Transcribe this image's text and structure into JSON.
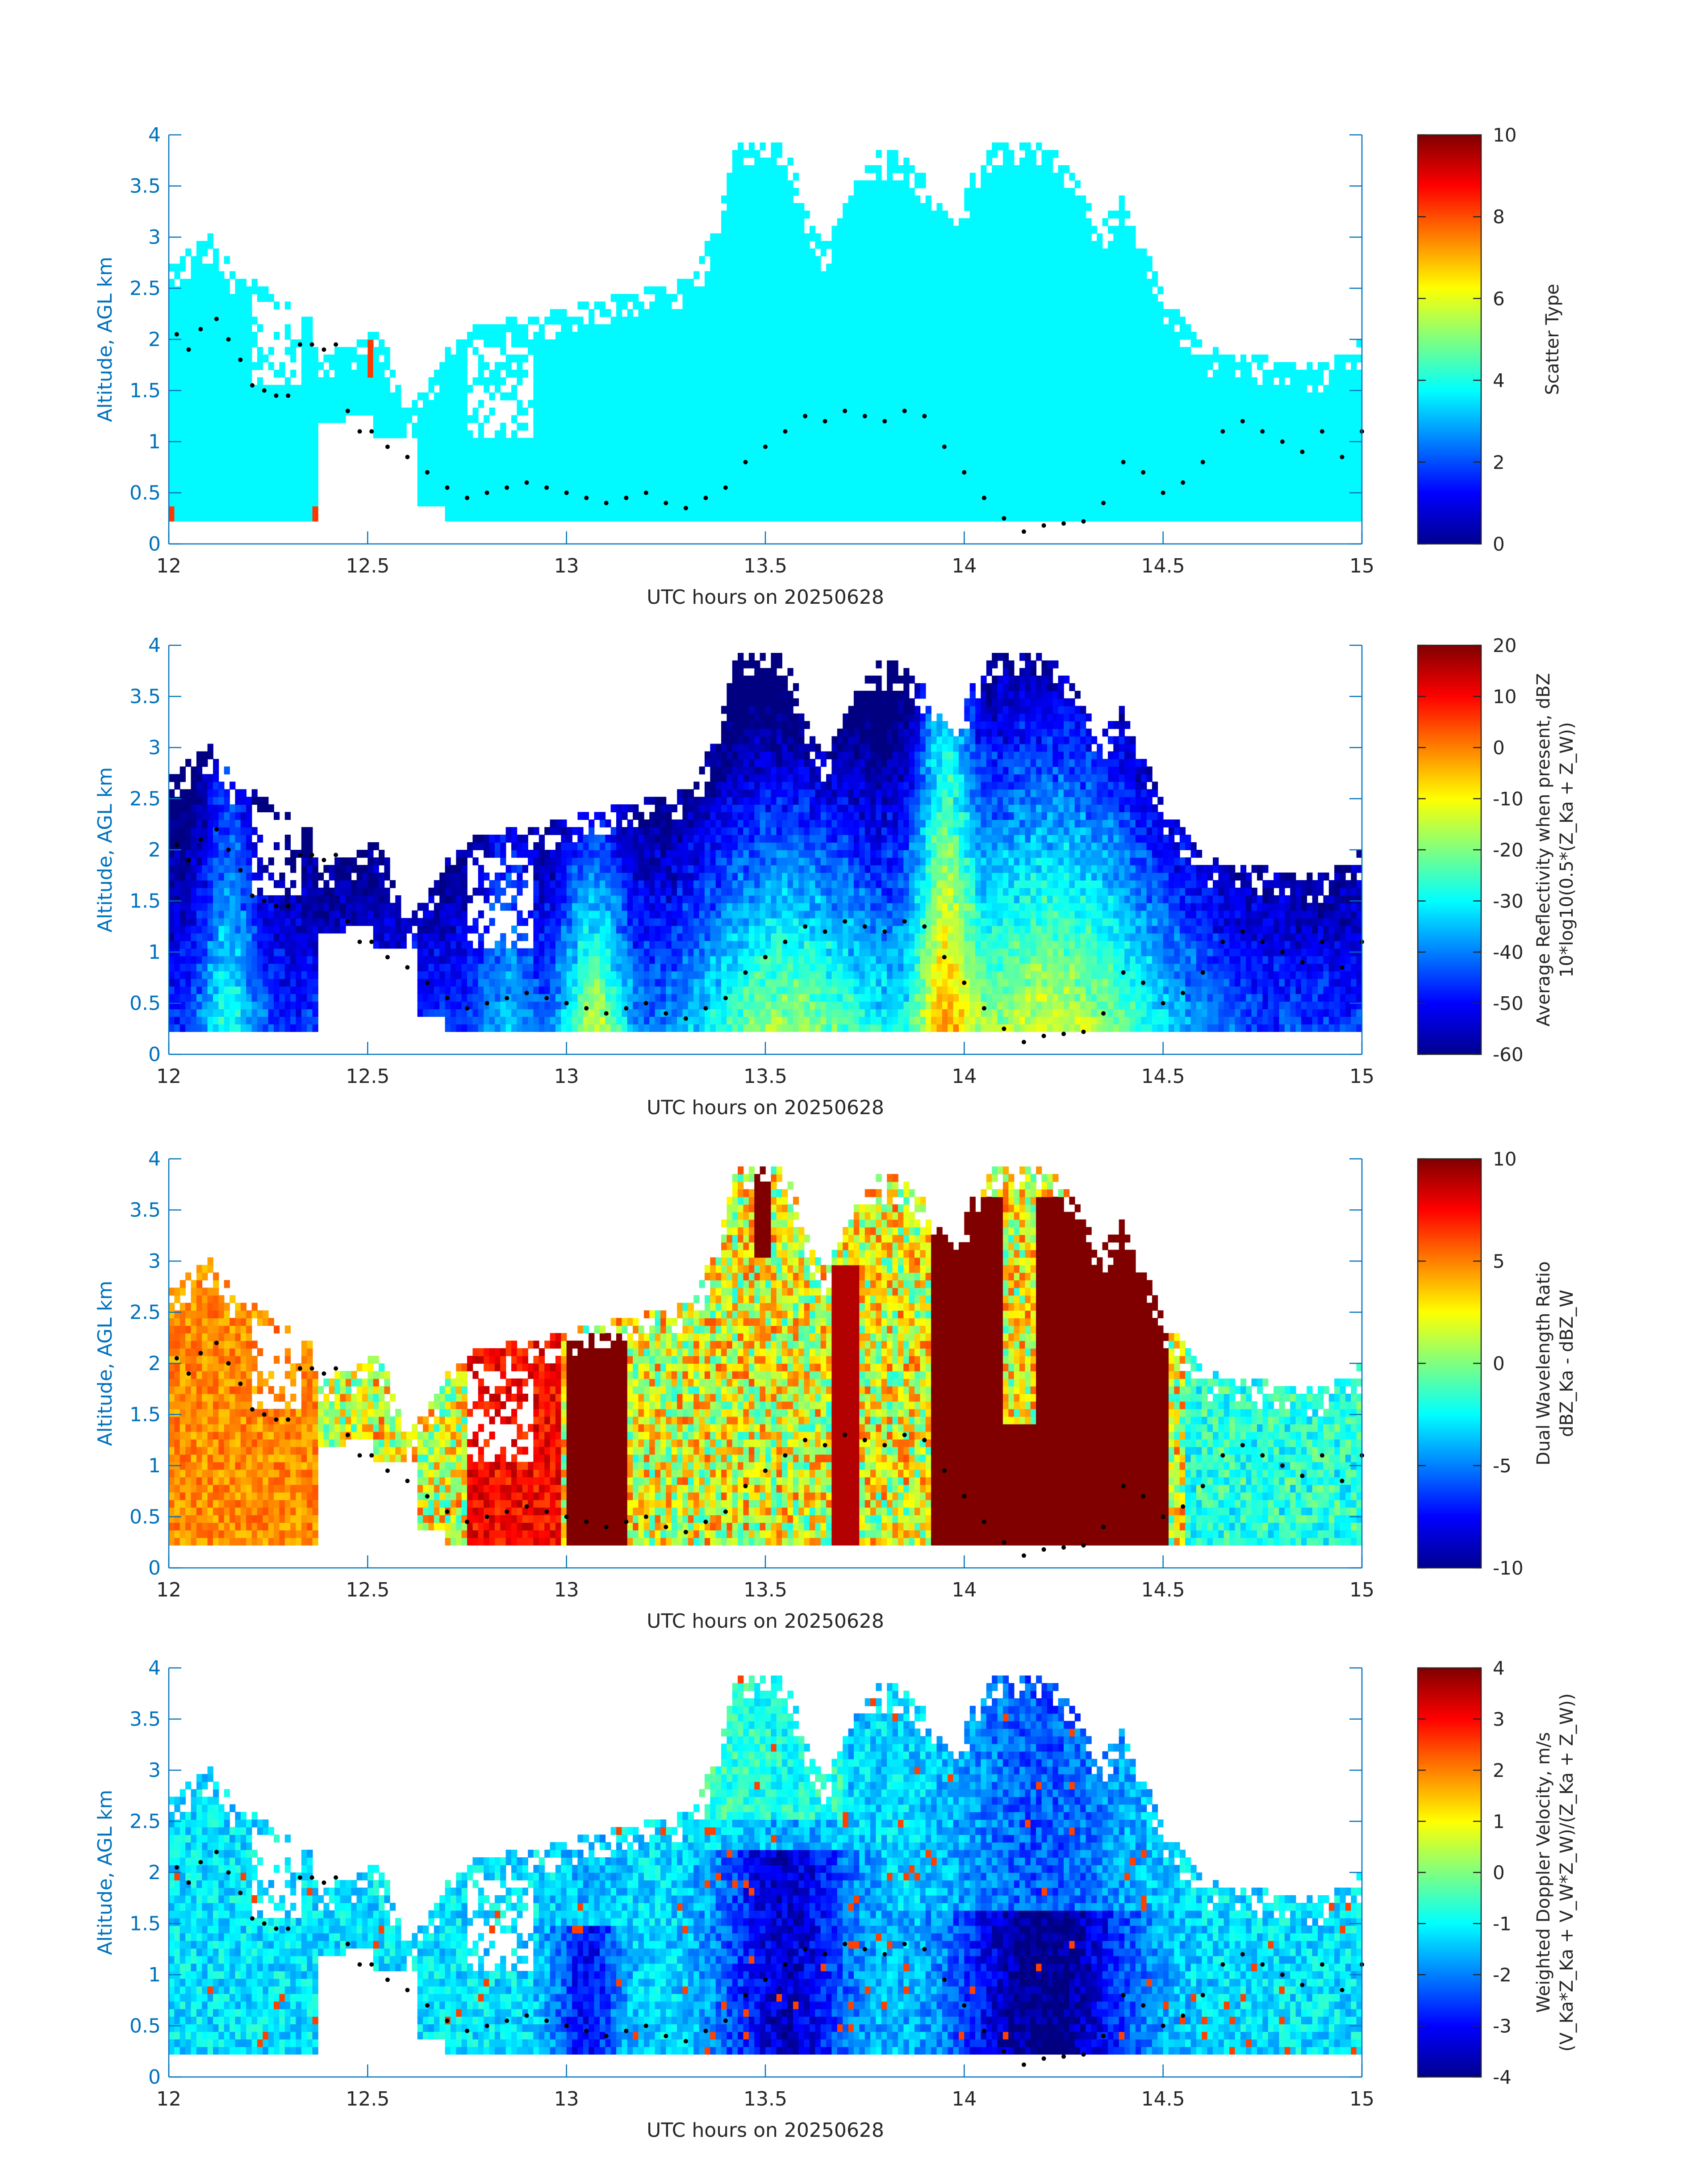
{
  "figure": {
    "colors": {
      "axis": "#0072BD",
      "text": "#262626",
      "background": "#FFFFFF",
      "colormap": "jet"
    }
  },
  "chart_data": [
    {
      "type": "heatmap",
      "title": "",
      "xlabel": "UTC hours on 20250628",
      "ylabel": "Altitude, AGL km",
      "xlim": [
        12,
        15
      ],
      "ylim": [
        0,
        4
      ],
      "xticks": [
        "12",
        "12.5",
        "13",
        "13.5",
        "14",
        "14.5",
        "15"
      ],
      "yticks": [
        "0",
        "0.5",
        "1",
        "1.5",
        "2",
        "2.5",
        "3",
        "3.5",
        "4"
      ],
      "colorbar": {
        "label_lines": [
          "Scatter Type"
        ],
        "clim": [
          0,
          10
        ],
        "ticks": [
          "0",
          "2",
          "4",
          "6",
          "8",
          "10"
        ]
      },
      "field": "scatter_type"
    },
    {
      "type": "heatmap",
      "title": "",
      "xlabel": "UTC hours on 20250628",
      "ylabel": "Altitude, AGL km",
      "xlim": [
        12,
        15
      ],
      "ylim": [
        0,
        4
      ],
      "xticks": [
        "12",
        "12.5",
        "13",
        "13.5",
        "14",
        "14.5",
        "15"
      ],
      "yticks": [
        "0",
        "0.5",
        "1",
        "1.5",
        "2",
        "2.5",
        "3",
        "3.5",
        "4"
      ],
      "colorbar": {
        "label_lines": [
          "Average Reflectivity when present, dBZ",
          "10*log10(0.5*(Z_Ka + Z_W))"
        ],
        "clim": [
          -60,
          20
        ],
        "ticks": [
          "-60",
          "-50",
          "-40",
          "-30",
          "-20",
          "-10",
          "0",
          "10",
          "20"
        ]
      },
      "field": "reflectivity"
    },
    {
      "type": "heatmap",
      "title": "",
      "xlabel": "UTC hours on 20250628",
      "ylabel": "Altitude, AGL km",
      "xlim": [
        12,
        15
      ],
      "ylim": [
        0,
        4
      ],
      "xticks": [
        "12",
        "12.5",
        "13",
        "13.5",
        "14",
        "14.5",
        "15"
      ],
      "yticks": [
        "0",
        "0.5",
        "1",
        "1.5",
        "2",
        "2.5",
        "3",
        "3.5",
        "4"
      ],
      "colorbar": {
        "label_lines": [
          "Dual Wavelength Ratio",
          "dBZ_Ka - dBZ_W"
        ],
        "clim": [
          -10,
          10
        ],
        "ticks": [
          "-10",
          "-5",
          "0",
          "5",
          "10"
        ]
      },
      "field": "dwr"
    },
    {
      "type": "heatmap",
      "title": "",
      "xlabel": "UTC hours on 20250628",
      "ylabel": "Altitude, AGL km",
      "xlim": [
        12,
        15
      ],
      "ylim": [
        0,
        4
      ],
      "xticks": [
        "12",
        "12.5",
        "13",
        "13.5",
        "14",
        "14.5",
        "15"
      ],
      "yticks": [
        "0",
        "0.5",
        "1",
        "1.5",
        "2",
        "2.5",
        "3",
        "3.5",
        "4"
      ],
      "colorbar": {
        "label_lines": [
          "Weighted Doppler Velocity, m/s",
          "(V_Ka*Z_Ka + V_W*Z_W)/(Z_Ka + Z_W))"
        ],
        "clim": [
          -4,
          4
        ],
        "ticks": [
          "-4",
          "-3",
          "-2",
          "-1",
          "0",
          "1",
          "2",
          "3",
          "4"
        ]
      },
      "field": "velocity"
    }
  ],
  "cloud_base_dots": {
    "x": [
      12.02,
      12.05,
      12.08,
      12.12,
      12.15,
      12.18,
      12.21,
      12.24,
      12.27,
      12.3,
      12.33,
      12.36,
      12.39,
      12.42,
      12.45,
      12.48,
      12.51,
      12.55,
      12.6,
      12.65,
      12.7,
      12.75,
      12.8,
      12.85,
      12.9,
      12.95,
      13.0,
      13.05,
      13.1,
      13.15,
      13.2,
      13.25,
      13.3,
      13.35,
      13.4,
      13.45,
      13.5,
      13.55,
      13.6,
      13.65,
      13.7,
      13.75,
      13.8,
      13.85,
      13.9,
      13.95,
      14.0,
      14.05,
      14.1,
      14.15,
      14.2,
      14.25,
      14.3,
      14.35,
      14.4,
      14.45,
      14.5,
      14.55,
      14.6,
      14.65,
      14.7,
      14.75,
      14.8,
      14.85,
      14.9,
      14.95,
      15.0
    ],
    "y": [
      2.05,
      1.9,
      2.1,
      2.2,
      2.0,
      1.8,
      1.55,
      1.5,
      1.45,
      1.45,
      1.95,
      1.95,
      1.9,
      1.95,
      1.3,
      1.1,
      1.1,
      0.95,
      0.85,
      0.7,
      0.55,
      0.45,
      0.5,
      0.55,
      0.6,
      0.55,
      0.5,
      0.45,
      0.4,
      0.45,
      0.5,
      0.4,
      0.35,
      0.45,
      0.55,
      0.8,
      0.95,
      1.1,
      1.25,
      1.2,
      1.3,
      1.25,
      1.2,
      1.3,
      1.25,
      0.95,
      0.7,
      0.45,
      0.25,
      0.12,
      0.18,
      0.2,
      0.22,
      0.4,
      0.8,
      0.7,
      0.5,
      0.6,
      0.8,
      1.1,
      1.2,
      1.1,
      1.0,
      0.9,
      1.1,
      0.85,
      1.1
    ]
  }
}
